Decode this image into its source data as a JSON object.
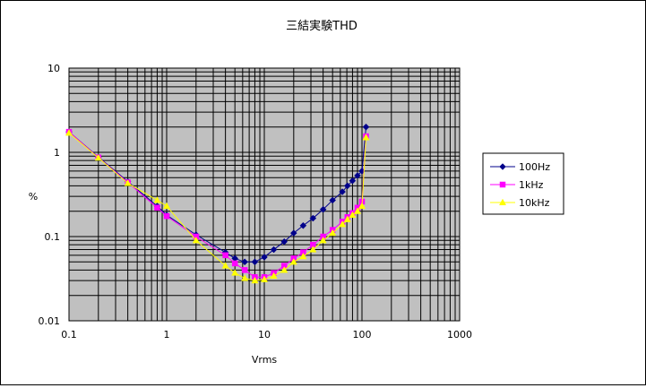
{
  "chart_data": {
    "type": "line",
    "title": "三結実験THD",
    "xlabel": "Vrms",
    "ylabel": "%",
    "x_scale": "log",
    "y_scale": "log",
    "xlim": [
      0.1,
      1000
    ],
    "ylim": [
      0.01,
      10
    ],
    "x_tick_labels": [
      "0.1",
      "1",
      "10",
      "100",
      "1000"
    ],
    "y_tick_labels": [
      "0.01",
      "0.1",
      "1",
      "10"
    ],
    "grid": true,
    "legend_position": "right",
    "colors": {
      "plot_bg": "#c0c0c0",
      "grid": "#000000"
    },
    "series": [
      {
        "name": "100Hz",
        "color": "#00008b",
        "marker": "diamond",
        "points": [
          [
            0.1,
            1.75
          ],
          [
            0.2,
            0.88
          ],
          [
            0.4,
            0.45
          ],
          [
            0.8,
            0.23
          ],
          [
            1.0,
            0.18
          ],
          [
            2.0,
            0.105
          ],
          [
            4.0,
            0.065
          ],
          [
            5.0,
            0.055
          ],
          [
            6.3,
            0.05
          ],
          [
            8.0,
            0.05
          ],
          [
            10.0,
            0.057
          ],
          [
            12.5,
            0.07
          ],
          [
            16.0,
            0.087
          ],
          [
            20.0,
            0.11
          ],
          [
            25.0,
            0.135
          ],
          [
            31.5,
            0.165
          ],
          [
            40.0,
            0.21
          ],
          [
            50.0,
            0.27
          ],
          [
            63.0,
            0.34
          ],
          [
            71.0,
            0.4
          ],
          [
            80.0,
            0.46
          ],
          [
            90.0,
            0.53
          ],
          [
            100.0,
            0.6
          ],
          [
            110.0,
            2.0
          ]
        ]
      },
      {
        "name": "1kHz",
        "color": "#ff00ff",
        "marker": "square",
        "points": [
          [
            0.1,
            1.75
          ],
          [
            0.2,
            0.87
          ],
          [
            0.4,
            0.44
          ],
          [
            0.8,
            0.22
          ],
          [
            1.0,
            0.175
          ],
          [
            2.0,
            0.1
          ],
          [
            4.0,
            0.06
          ],
          [
            5.0,
            0.048
          ],
          [
            6.3,
            0.04
          ],
          [
            8.0,
            0.033
          ],
          [
            10.0,
            0.033
          ],
          [
            12.5,
            0.037
          ],
          [
            16.0,
            0.045
          ],
          [
            20.0,
            0.055
          ],
          [
            25.0,
            0.065
          ],
          [
            31.5,
            0.08
          ],
          [
            40.0,
            0.1
          ],
          [
            50.0,
            0.12
          ],
          [
            63.0,
            0.15
          ],
          [
            71.0,
            0.17
          ],
          [
            80.0,
            0.19
          ],
          [
            90.0,
            0.22
          ],
          [
            100.0,
            0.26
          ],
          [
            110.0,
            1.55
          ]
        ]
      },
      {
        "name": "10kHz",
        "color": "#ffff00",
        "marker": "triangle",
        "points": [
          [
            0.1,
            1.7
          ],
          [
            0.2,
            0.86
          ],
          [
            0.4,
            0.43
          ],
          [
            0.8,
            0.27
          ],
          [
            1.0,
            0.23
          ],
          [
            2.0,
            0.09
          ],
          [
            4.0,
            0.045
          ],
          [
            5.0,
            0.037
          ],
          [
            6.3,
            0.032
          ],
          [
            8.0,
            0.03
          ],
          [
            10.0,
            0.031
          ],
          [
            12.5,
            0.034
          ],
          [
            16.0,
            0.04
          ],
          [
            20.0,
            0.05
          ],
          [
            25.0,
            0.058
          ],
          [
            31.5,
            0.07
          ],
          [
            40.0,
            0.09
          ],
          [
            50.0,
            0.11
          ],
          [
            63.0,
            0.14
          ],
          [
            71.0,
            0.16
          ],
          [
            80.0,
            0.18
          ],
          [
            90.0,
            0.2
          ],
          [
            100.0,
            0.23
          ],
          [
            110.0,
            1.5
          ]
        ]
      }
    ]
  }
}
